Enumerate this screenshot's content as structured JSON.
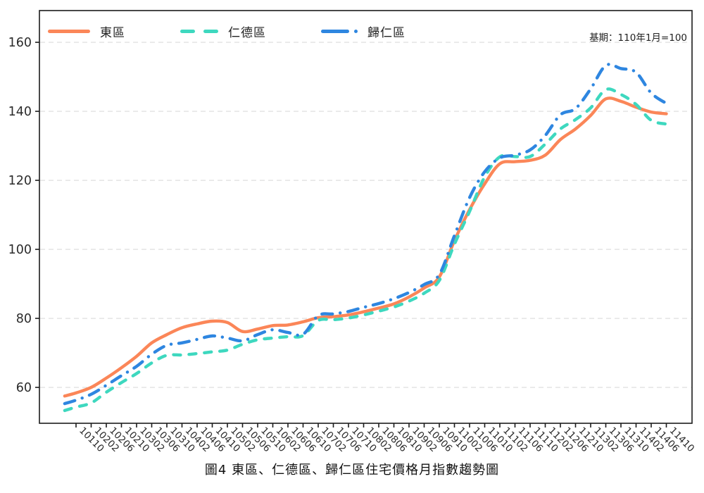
{
  "caption": "圖4 東區、仁德區、歸仁區住宅價格月指數趨勢圖",
  "base_note": "基期：110年1月=100",
  "legend": {
    "items": [
      {
        "label": "東區",
        "color": "#FB8658",
        "style": "solid"
      },
      {
        "label": "仁德區",
        "color": "#3ED8BF",
        "style": "dashed"
      },
      {
        "label": "歸仁區",
        "color": "#2E86E0",
        "style": "dashdot"
      }
    ]
  },
  "colors": {
    "grid": "#DBDBDB",
    "frame": "#1C1C1C",
    "tick_text": "#2B2B2B"
  },
  "chart_data": {
    "type": "line",
    "title": "圖4 東區、仁德區、歸仁區住宅價格月指數趨勢圖",
    "xlabel": "",
    "ylabel": "",
    "ylim": [
      49.6,
      169.2
    ],
    "yticks": [
      60,
      80,
      100,
      120,
      140,
      160
    ],
    "grid": "horizontal-dashed",
    "legend_position": "top-left",
    "x_tick_labels": [
      "10110",
      "10202",
      "10206",
      "10210",
      "10302",
      "10306",
      "10310",
      "10402",
      "10406",
      "10410",
      "10502",
      "10506",
      "10510",
      "10602",
      "10606",
      "10610",
      "10702",
      "10706",
      "10710",
      "10802",
      "10806",
      "10810",
      "10902",
      "10906",
      "10910",
      "11002",
      "11006",
      "11010",
      "11102",
      "11106",
      "11110",
      "11202",
      "11206",
      "11210",
      "11302",
      "11306",
      "11310",
      "11402",
      "11406",
      "11410"
    ],
    "x": [
      "10107",
      "10110",
      "10202",
      "10206",
      "10210",
      "10302",
      "10306",
      "10310",
      "10402",
      "10406",
      "10410",
      "10502",
      "10506",
      "10510",
      "10602",
      "10606",
      "10610",
      "10702",
      "10706",
      "10710",
      "10802",
      "10806",
      "10810",
      "10902",
      "10906",
      "10910",
      "11002",
      "11006",
      "11010",
      "11102",
      "11106",
      "11110",
      "11202",
      "11206",
      "11210",
      "11302",
      "11306",
      "11310",
      "11402",
      "11406",
      "11410"
    ],
    "series": [
      {
        "name": "東區",
        "color": "#FB8658",
        "style": "solid",
        "values": [
          57.5,
          58.4,
          60.0,
          62.7,
          65.7,
          69.0,
          72.9,
          75.3,
          77.3,
          78.4,
          79.2,
          78.8,
          76.2,
          76.9,
          77.9,
          78.1,
          79.0,
          80.2,
          80.5,
          81.0,
          81.9,
          83.0,
          84.2,
          86.2,
          88.8,
          92.0,
          102.5,
          111.5,
          119.0,
          124.8,
          125.4,
          125.8,
          127.3,
          131.8,
          134.9,
          138.8,
          143.6,
          142.9,
          141.2,
          139.8,
          139.3
        ]
      },
      {
        "name": "仁德區",
        "color": "#3ED8BF",
        "style": "dashed",
        "values": [
          53.3,
          54.3,
          55.5,
          58.6,
          61.4,
          64.0,
          67.1,
          69.3,
          69.4,
          69.8,
          70.3,
          70.8,
          72.5,
          73.8,
          74.3,
          74.7,
          75.0,
          79.4,
          79.6,
          80.1,
          81.0,
          82.1,
          83.3,
          85.0,
          87.3,
          91.0,
          101.5,
          111.0,
          121.0,
          126.8,
          126.9,
          126.9,
          130.5,
          134.9,
          137.6,
          141.0,
          146.3,
          144.9,
          142.0,
          137.4,
          136.3
        ]
      },
      {
        "name": "歸仁區",
        "color": "#2E86E0",
        "style": "dashdot",
        "values": [
          55.3,
          56.3,
          58.0,
          60.6,
          63.4,
          66.1,
          69.6,
          72.2,
          72.9,
          73.9,
          74.9,
          74.3,
          73.5,
          75.3,
          76.7,
          75.9,
          75.4,
          80.8,
          81.3,
          82.0,
          83.2,
          84.3,
          85.7,
          87.5,
          89.8,
          92.7,
          104.0,
          115.0,
          122.5,
          126.5,
          127.3,
          128.8,
          133.0,
          139.0,
          140.8,
          146.5,
          153.3,
          152.4,
          151.3,
          145.3,
          142.3
        ]
      }
    ]
  }
}
